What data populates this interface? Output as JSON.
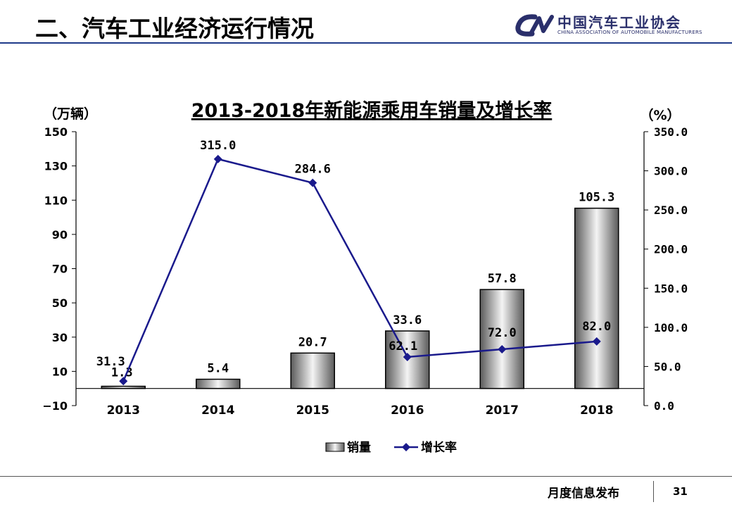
{
  "header": {
    "title": "二、汽车工业经济运行情况",
    "logo_text": "中国汽车工业协会",
    "logo_subtext": "CHINA ASSOCIATION OF AUTOMOBILE MANUFACTURERS"
  },
  "footer": {
    "label": "月度信息发布",
    "page_number": "31"
  },
  "colors": {
    "header_line": "#1f3a8a",
    "line_series": "#1a1a8c",
    "bar_fill": "#b0b0b0"
  },
  "chart_data": {
    "type": "bar+line",
    "title": "2013-2018年新能源乘用车销量及增长率",
    "left_unit": "（万辆）",
    "right_unit": "（%）",
    "categories": [
      "2013",
      "2014",
      "2015",
      "2016",
      "2017",
      "2018"
    ],
    "series": [
      {
        "name": "销量",
        "type": "bar",
        "axis": "left",
        "values": [
          1.3,
          5.4,
          20.7,
          33.6,
          57.8,
          105.3
        ],
        "labels": [
          "1.3",
          "5.4",
          "20.7",
          "33.6",
          "57.8",
          "105.3"
        ]
      },
      {
        "name": "增长率",
        "type": "line",
        "axis": "right",
        "values": [
          31.3,
          315.0,
          284.6,
          62.1,
          72.0,
          82.0
        ],
        "labels": [
          "31.3",
          "315.0",
          "284.6",
          "62.1",
          "72.0",
          "82.0"
        ]
      }
    ],
    "left_axis": {
      "ylim": [
        -10,
        150
      ],
      "ticks": [
        "150",
        "130",
        "110",
        "90",
        "70",
        "50",
        "30",
        "10",
        "−10"
      ]
    },
    "right_axis": {
      "ylim": [
        0,
        350
      ],
      "ticks": [
        "350.0",
        "300.0",
        "250.0",
        "200.0",
        "150.0",
        "100.0",
        "50.0",
        "0.0"
      ]
    },
    "legend_position": "bottom",
    "grid": false
  }
}
